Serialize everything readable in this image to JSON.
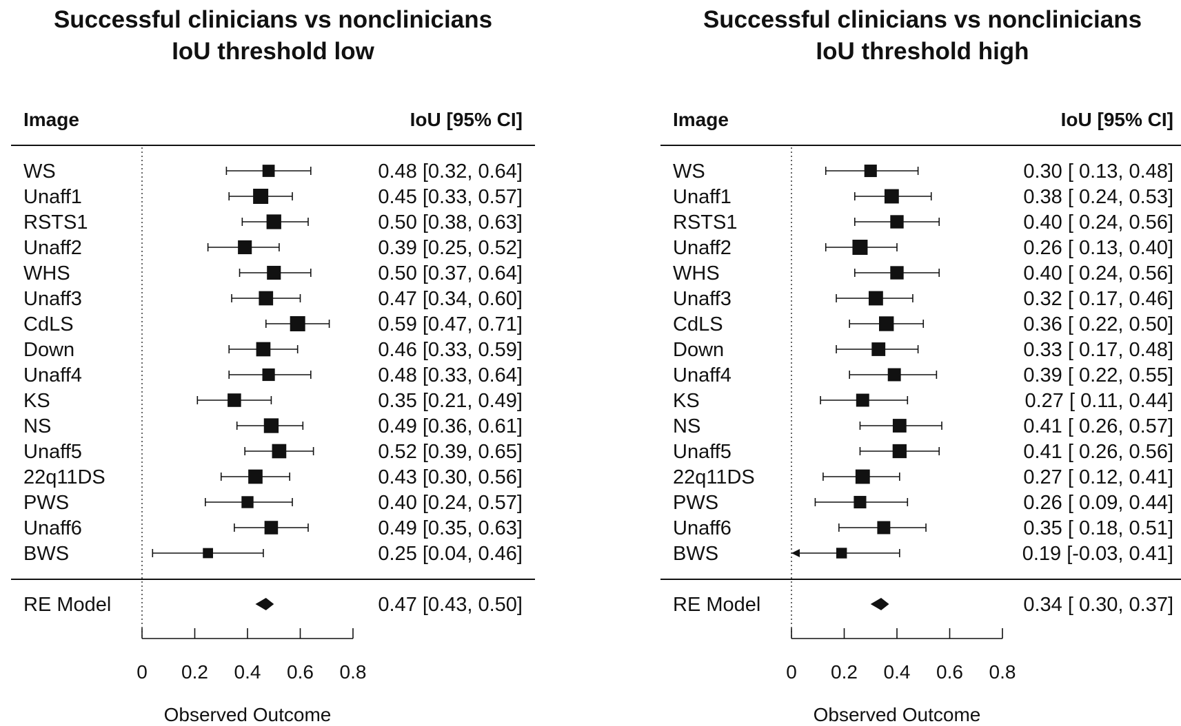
{
  "chart_data": [
    {
      "type": "forest",
      "title_lines": [
        "Successful clinicians vs nonclinicians",
        "IoU threshold low"
      ],
      "label_header": "Image",
      "value_header": "IoU [95% CI]",
      "xlabel": "Observed Outcome",
      "xlim": [
        0,
        0.8
      ],
      "xticks": [
        "0",
        "0.2",
        "0.4",
        "0.6",
        "0.8"
      ],
      "studies": [
        {
          "label": "WS",
          "est": 0.48,
          "lo": 0.32,
          "hi": 0.64,
          "text": "0.48 [0.32, 0.64]"
        },
        {
          "label": "Unaff1",
          "est": 0.45,
          "lo": 0.33,
          "hi": 0.57,
          "text": "0.45 [0.33, 0.57]"
        },
        {
          "label": "RSTS1",
          "est": 0.5,
          "lo": 0.38,
          "hi": 0.63,
          "text": "0.50 [0.38, 0.63]"
        },
        {
          "label": "Unaff2",
          "est": 0.39,
          "lo": 0.25,
          "hi": 0.52,
          "text": "0.39 [0.25, 0.52]"
        },
        {
          "label": "WHS",
          "est": 0.5,
          "lo": 0.37,
          "hi": 0.64,
          "text": "0.50 [0.37, 0.64]"
        },
        {
          "label": "Unaff3",
          "est": 0.47,
          "lo": 0.34,
          "hi": 0.6,
          "text": "0.47 [0.34, 0.60]"
        },
        {
          "label": "CdLS",
          "est": 0.59,
          "lo": 0.47,
          "hi": 0.71,
          "text": "0.59 [0.47, 0.71]"
        },
        {
          "label": "Down",
          "est": 0.46,
          "lo": 0.33,
          "hi": 0.59,
          "text": "0.46 [0.33, 0.59]"
        },
        {
          "label": "Unaff4",
          "est": 0.48,
          "lo": 0.33,
          "hi": 0.64,
          "text": "0.48 [0.33, 0.64]"
        },
        {
          "label": "KS",
          "est": 0.35,
          "lo": 0.21,
          "hi": 0.49,
          "text": "0.35 [0.21, 0.49]"
        },
        {
          "label": "NS",
          "est": 0.49,
          "lo": 0.36,
          "hi": 0.61,
          "text": "0.49 [0.36, 0.61]"
        },
        {
          "label": "Unaff5",
          "est": 0.52,
          "lo": 0.39,
          "hi": 0.65,
          "text": "0.52 [0.39, 0.65]"
        },
        {
          "label": "22q11DS",
          "est": 0.43,
          "lo": 0.3,
          "hi": 0.56,
          "text": "0.43 [0.30, 0.56]"
        },
        {
          "label": "PWS",
          "est": 0.4,
          "lo": 0.24,
          "hi": 0.57,
          "text": "0.40 [0.24, 0.57]"
        },
        {
          "label": "Unaff6",
          "est": 0.49,
          "lo": 0.35,
          "hi": 0.63,
          "text": "0.49 [0.35, 0.63]"
        },
        {
          "label": "BWS",
          "est": 0.25,
          "lo": 0.04,
          "hi": 0.46,
          "text": "0.25 [0.04, 0.46]"
        }
      ],
      "summary": {
        "label": "RE Model",
        "est": 0.47,
        "lo": 0.43,
        "hi": 0.5,
        "text": "0.47 [0.43, 0.50]"
      }
    },
    {
      "type": "forest",
      "title_lines": [
        "Successful clinicians vs nonclinicians",
        "IoU threshold high"
      ],
      "label_header": "Image",
      "value_header": "IoU [95% CI]",
      "xlabel": "Observed Outcome",
      "xlim": [
        0,
        0.8
      ],
      "xticks": [
        "0",
        "0.2",
        "0.4",
        "0.6",
        "0.8"
      ],
      "studies": [
        {
          "label": "WS",
          "est": 0.3,
          "lo": 0.13,
          "hi": 0.48,
          "text": "0.30 [ 0.13, 0.48]"
        },
        {
          "label": "Unaff1",
          "est": 0.38,
          "lo": 0.24,
          "hi": 0.53,
          "text": "0.38 [ 0.24, 0.53]"
        },
        {
          "label": "RSTS1",
          "est": 0.4,
          "lo": 0.24,
          "hi": 0.56,
          "text": "0.40 [ 0.24, 0.56]"
        },
        {
          "label": "Unaff2",
          "est": 0.26,
          "lo": 0.13,
          "hi": 0.4,
          "text": "0.26 [ 0.13, 0.40]"
        },
        {
          "label": "WHS",
          "est": 0.4,
          "lo": 0.24,
          "hi": 0.56,
          "text": "0.40 [ 0.24, 0.56]"
        },
        {
          "label": "Unaff3",
          "est": 0.32,
          "lo": 0.17,
          "hi": 0.46,
          "text": "0.32 [ 0.17, 0.46]"
        },
        {
          "label": "CdLS",
          "est": 0.36,
          "lo": 0.22,
          "hi": 0.5,
          "text": "0.36 [ 0.22, 0.50]"
        },
        {
          "label": "Down",
          "est": 0.33,
          "lo": 0.17,
          "hi": 0.48,
          "text": "0.33 [ 0.17, 0.48]"
        },
        {
          "label": "Unaff4",
          "est": 0.39,
          "lo": 0.22,
          "hi": 0.55,
          "text": "0.39 [ 0.22, 0.55]"
        },
        {
          "label": "KS",
          "est": 0.27,
          "lo": 0.11,
          "hi": 0.44,
          "text": "0.27 [ 0.11, 0.44]"
        },
        {
          "label": "NS",
          "est": 0.41,
          "lo": 0.26,
          "hi": 0.57,
          "text": "0.41 [ 0.26, 0.57]"
        },
        {
          "label": "Unaff5",
          "est": 0.41,
          "lo": 0.26,
          "hi": 0.56,
          "text": "0.41 [ 0.26, 0.56]"
        },
        {
          "label": "22q11DS",
          "est": 0.27,
          "lo": 0.12,
          "hi": 0.41,
          "text": "0.27 [ 0.12, 0.41]"
        },
        {
          "label": "PWS",
          "est": 0.26,
          "lo": 0.09,
          "hi": 0.44,
          "text": "0.26 [ 0.09, 0.44]"
        },
        {
          "label": "Unaff6",
          "est": 0.35,
          "lo": 0.18,
          "hi": 0.51,
          "text": "0.35 [ 0.18, 0.51]"
        },
        {
          "label": "BWS",
          "est": 0.19,
          "lo": -0.03,
          "hi": 0.41,
          "text": "0.19 [-0.03, 0.41]"
        }
      ],
      "summary": {
        "label": "RE Model",
        "est": 0.34,
        "lo": 0.3,
        "hi": 0.37,
        "text": "0.34 [ 0.30, 0.37]"
      }
    }
  ]
}
